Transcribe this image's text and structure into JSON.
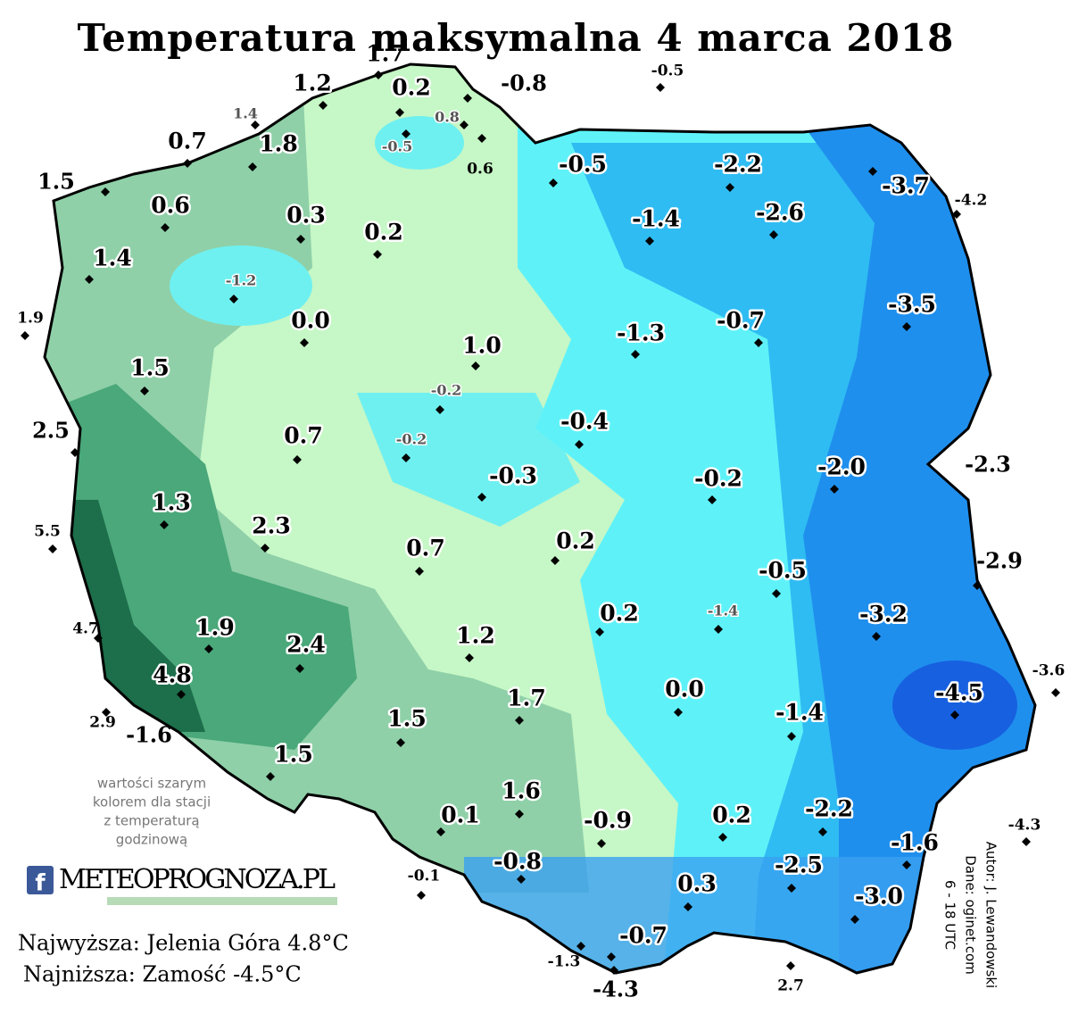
{
  "title": "Temperatura maksymalna 4 marca 2018",
  "stations": [
    "1.7",
    "1.2",
    "0.2",
    "-0.8",
    "-0.5",
    "1.4",
    "0.8",
    "-0.5",
    "0.6",
    "0.7",
    "1.8",
    "1.5",
    "0.6",
    "0.3",
    "0.2",
    "1.4",
    "-1.2",
    "1.9",
    "0.0",
    "1.0",
    "1.5",
    "-0.2",
    "2.5",
    "0.7",
    "-0.2",
    "-0.3",
    "1.3",
    "5.5",
    "2.3",
    "0.7",
    "1.9",
    "2.4",
    "4.7",
    "1.2",
    "4.8",
    "2.9",
    "-1.6",
    "1.5",
    "1.7",
    "1.5",
    "0.1",
    "1.6",
    "-0.1",
    "-0.8",
    "-0.4",
    "0.2",
    "0.2",
    "-0.5",
    "-2.2",
    "-3.7",
    "-4.2",
    "-1.4",
    "-2.6",
    "-1.3",
    "-0.7",
    "-3.5",
    "-0.2",
    "-2.0",
    "-2.3",
    "-2.9",
    "-0.5",
    "-1.4",
    "-3.2",
    "-3.6",
    "0.0",
    "-4.5",
    "-1.4",
    "0.2",
    "-0.9",
    "-2.2",
    "-1.6",
    "-4.3",
    "-2.5",
    "-3.0",
    "0.3",
    "-0.7",
    "-1.3",
    "-4.3",
    "2.7"
  ],
  "note": [
    "wartości szarym",
    "kolorem dla stacji",
    "z temperaturą",
    "godzinową"
  ],
  "logo": {
    "icon": "f",
    "text": "METEOPROGNOZA.PL"
  },
  "credits": [
    "Autor: J. Lewandowski",
    "Dane: oginet.com",
    "6 - 18 UTC"
  ],
  "extremes": [
    "Najwyższa: Jelenia Góra 4.8°C",
    "Najniższa: Zamość -4.5°C"
  ]
}
